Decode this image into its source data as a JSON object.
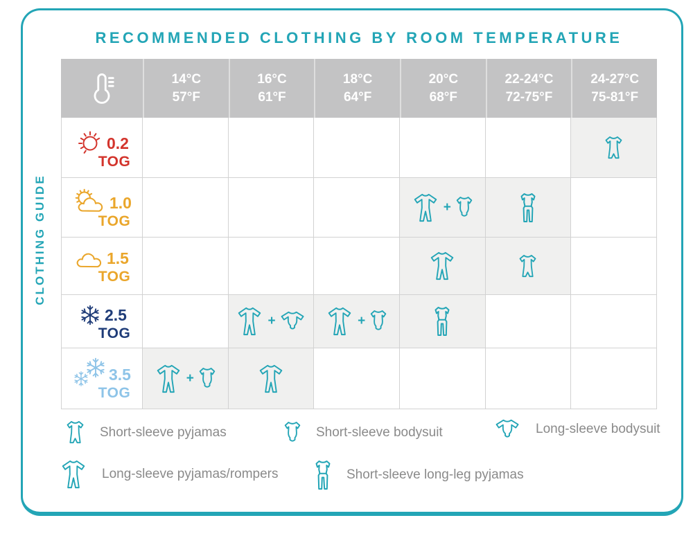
{
  "title": "RECOMMENDED CLOTHING BY ROOM TEMPERATURE",
  "side_label": "CLOTHING GUIDE",
  "plus_separator": "+",
  "colors": {
    "accent_teal": "#23a5b6",
    "header_bg": "#c3c3c4",
    "shaded_cell": "#f0f0ef",
    "grid_line": "#d2d2d2",
    "tog_02_red": "#d3342c",
    "tog_10_gold": "#eaa62b",
    "tog_15_gold": "#eaa62b",
    "tog_25_navy": "#1f3c78",
    "tog_35_lightblue": "#8ec4e8",
    "legend_text": "#8a8a8a"
  },
  "chart_data": {
    "type": "table",
    "title": "RECOMMENDED CLOTHING BY ROOM TEMPERATURE",
    "corner_icon": "thermometer-icon",
    "columns": [
      {
        "celsius": "14°C",
        "fahrenheit": "57°F"
      },
      {
        "celsius": "16°C",
        "fahrenheit": "61°F"
      },
      {
        "celsius": "18°C",
        "fahrenheit": "64°F"
      },
      {
        "celsius": "20°C",
        "fahrenheit": "68°F"
      },
      {
        "celsius": "22-24°C",
        "fahrenheit": "72-75°F"
      },
      {
        "celsius": "24-27°C",
        "fahrenheit": "75-81°F"
      }
    ],
    "rows": [
      {
        "tog": "0.2",
        "unit": "TOG",
        "weather_icon": "sun-icon",
        "color": "#d3342c",
        "cells": [
          [],
          [],
          [],
          [],
          [],
          [
            "short-sleeve-pyjamas"
          ]
        ]
      },
      {
        "tog": "1.0",
        "unit": "TOG",
        "weather_icon": "sun-cloud-icon",
        "color": "#eaa62b",
        "cells": [
          [],
          [],
          [],
          [
            "long-sleeve-pyjamas",
            "short-sleeve-bodysuit"
          ],
          [
            "short-sleeve-long-leg-pyjamas"
          ],
          []
        ]
      },
      {
        "tog": "1.5",
        "unit": "TOG",
        "weather_icon": "cloud-icon",
        "color": "#eaa62b",
        "cells": [
          [],
          [],
          [],
          [
            "long-sleeve-pyjamas"
          ],
          [
            "short-sleeve-pyjamas"
          ],
          []
        ]
      },
      {
        "tog": "2.5",
        "unit": "TOG",
        "weather_icon": "snowflake-icon",
        "color": "#1f3c78",
        "cells": [
          [],
          [
            "long-sleeve-pyjamas",
            "long-sleeve-bodysuit"
          ],
          [
            "long-sleeve-pyjamas",
            "short-sleeve-bodysuit"
          ],
          [
            "short-sleeve-long-leg-pyjamas"
          ],
          [],
          []
        ]
      },
      {
        "tog": "3.5",
        "unit": "TOG",
        "weather_icon": "double-snowflake-icon",
        "color": "#8ec4e8",
        "cells": [
          [
            "long-sleeve-pyjamas",
            "short-sleeve-bodysuit"
          ],
          [
            "long-sleeve-pyjamas"
          ],
          [],
          [],
          [],
          []
        ]
      }
    ]
  },
  "legend": {
    "items": [
      {
        "icon": "short-sleeve-pyjamas",
        "label": "Short-sleeve pyjamas"
      },
      {
        "icon": "short-sleeve-bodysuit",
        "label": "Short-sleeve bodysuit"
      },
      {
        "icon": "long-sleeve-bodysuit",
        "label": "Long-sleeve bodysuit"
      },
      {
        "icon": "long-sleeve-pyjamas",
        "label": "Long-sleeve pyjamas/rompers"
      },
      {
        "icon": "short-sleeve-long-leg-pyjamas",
        "label": "Short-sleeve long-leg pyjamas"
      }
    ]
  }
}
